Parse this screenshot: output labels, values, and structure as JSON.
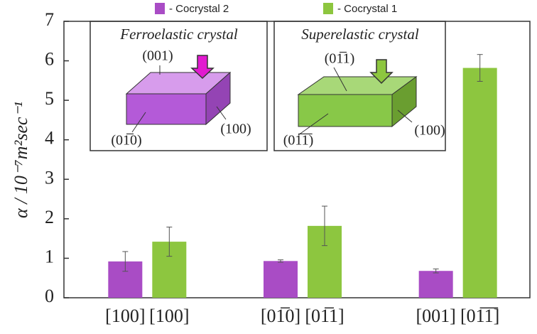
{
  "chart_data": {
    "type": "bar",
    "ylabel": "α / 10⁻⁷m²sec⁻¹",
    "group_labels": [
      [
        "[100]",
        "[100]"
      ],
      [
        "[01̅0]",
        "[01̅1]"
      ],
      [
        "[001]",
        "[01̅1̅]"
      ]
    ],
    "series": [
      {
        "name": "- Cocrystal 2",
        "color": "#a94cc5",
        "values": [
          0.92,
          0.93,
          0.68
        ],
        "errors": [
          0.25,
          0.03,
          0.05
        ]
      },
      {
        "name": "- Cocrystal 1",
        "color": "#8dc63f",
        "values": [
          1.42,
          1.82,
          5.82
        ],
        "errors": [
          0.37,
          0.5,
          0.34
        ]
      }
    ],
    "ylim": [
      0,
      7
    ],
    "yticks": [
      0,
      1,
      2,
      3,
      4,
      5,
      6,
      7
    ],
    "insets": [
      {
        "title": "Ferroelastic crystal",
        "top_face": "(001)",
        "side_face": "(100)",
        "front_face": "(01̅0)"
      },
      {
        "title": "Superelastic crystal",
        "top_face": "(01̅1)",
        "side_face": "(100)",
        "front_face": "(01̅1̅)"
      }
    ]
  }
}
